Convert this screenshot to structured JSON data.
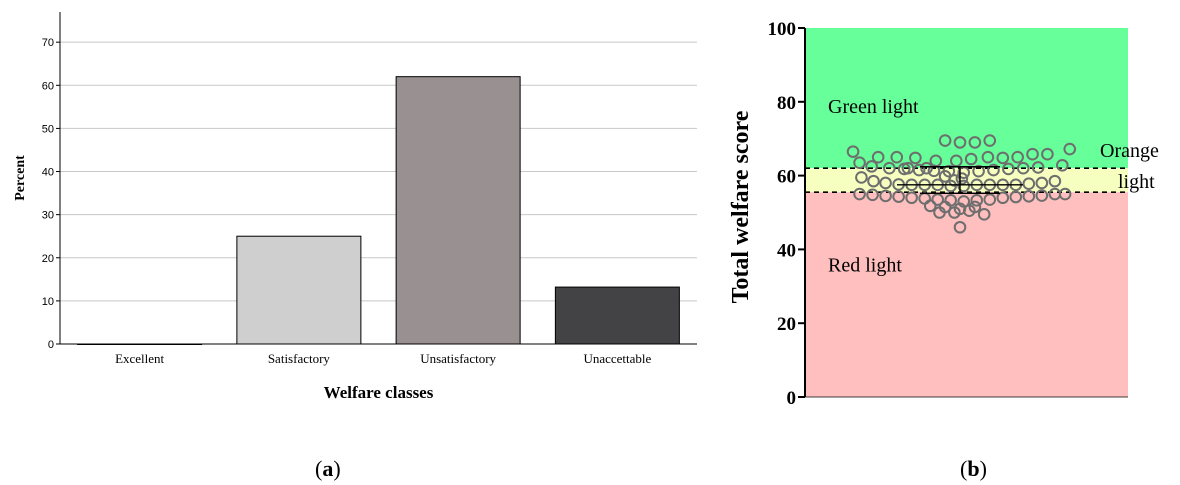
{
  "chart_data": [
    {
      "panel": "a",
      "type": "bar",
      "xlabel": "Welfare classes",
      "ylabel": "Percent",
      "ylim": [
        0,
        77
      ],
      "yticks": [
        0,
        10,
        20,
        30,
        40,
        50,
        60,
        70
      ],
      "grid": true,
      "categories": [
        "Excellent",
        "Satisfactory",
        "Unsatisfactory",
        "Unaccettable"
      ],
      "values": [
        0,
        25,
        62,
        13.2
      ],
      "colors": [
        "#ffffff",
        "#cfcfcf",
        "#999191",
        "#434345"
      ]
    },
    {
      "panel": "b",
      "type": "scatter",
      "ylabel": "Total welfare score",
      "ylim": [
        0,
        100
      ],
      "yticks": [
        0,
        20,
        40,
        60,
        80,
        100
      ],
      "zones": [
        {
          "label": "Green light",
          "from": 62,
          "to": 100,
          "color": "#66ff99"
        },
        {
          "label": "Orange light",
          "from": 55.5,
          "to": 62,
          "color": "#f6ffc0"
        },
        {
          "label": "Red light",
          "from": 0,
          "to": 55.5,
          "color": "#ffbfbf"
        }
      ],
      "thresholds": [
        62,
        55.5
      ],
      "mean": 57.5,
      "sd_range": [
        55.2,
        62.4
      ],
      "points": [
        {
          "x": -11.5,
          "y": 66.5
        },
        {
          "x": -10.8,
          "y": 63.5
        },
        {
          "x": -9.5,
          "y": 62.5
        },
        {
          "x": -8.8,
          "y": 65
        },
        {
          "x": -7.6,
          "y": 62
        },
        {
          "x": -6.8,
          "y": 65
        },
        {
          "x": -5.6,
          "y": 62
        },
        {
          "x": -4.8,
          "y": 64.8
        },
        {
          "x": -3.6,
          "y": 62
        },
        {
          "x": -2.6,
          "y": 64
        },
        {
          "x": -1.6,
          "y": 69.5
        },
        {
          "x": 0,
          "y": 69
        },
        {
          "x": 1.6,
          "y": 69
        },
        {
          "x": 3.2,
          "y": 69.5
        },
        {
          "x": -0.4,
          "y": 64
        },
        {
          "x": 1.2,
          "y": 64.5
        },
        {
          "x": 3.0,
          "y": 65
        },
        {
          "x": 4.6,
          "y": 64.8
        },
        {
          "x": 6.2,
          "y": 65
        },
        {
          "x": 7.8,
          "y": 65.8
        },
        {
          "x": 9.4,
          "y": 65.8
        },
        {
          "x": 11.0,
          "y": 62.8
        },
        {
          "x": 11.8,
          "y": 67.2
        },
        {
          "x": -10.6,
          "y": 59.5
        },
        {
          "x": -9.3,
          "y": 58.5
        },
        {
          "x": -8.0,
          "y": 58
        },
        {
          "x": -6.6,
          "y": 57.6
        },
        {
          "x": -5.2,
          "y": 57.5
        },
        {
          "x": -3.8,
          "y": 57.5
        },
        {
          "x": -2.4,
          "y": 57.5
        },
        {
          "x": -1.0,
          "y": 57.2
        },
        {
          "x": 0.4,
          "y": 57.2
        },
        {
          "x": 1.8,
          "y": 57.5
        },
        {
          "x": 3.2,
          "y": 57.5
        },
        {
          "x": 4.6,
          "y": 57.5
        },
        {
          "x": 6.0,
          "y": 57.5
        },
        {
          "x": 7.4,
          "y": 57.8
        },
        {
          "x": 8.8,
          "y": 58
        },
        {
          "x": 10.2,
          "y": 58.5
        },
        {
          "x": -6.0,
          "y": 61.8
        },
        {
          "x": -4.4,
          "y": 61.5
        },
        {
          "x": -2.8,
          "y": 61.3
        },
        {
          "x": -1.2,
          "y": 61.2
        },
        {
          "x": 0.4,
          "y": 60.8
        },
        {
          "x": 2.0,
          "y": 61.2
        },
        {
          "x": 3.6,
          "y": 61.5
        },
        {
          "x": 5.2,
          "y": 61.8
        },
        {
          "x": 6.8,
          "y": 62
        },
        {
          "x": 8.4,
          "y": 62.2
        },
        {
          "x": -1.6,
          "y": 59.8
        },
        {
          "x": 0.2,
          "y": 59.2
        },
        {
          "x": -0.6,
          "y": 58.7
        },
        {
          "x": -10.8,
          "y": 55
        },
        {
          "x": -9.4,
          "y": 54.8
        },
        {
          "x": -8.0,
          "y": 54.5
        },
        {
          "x": -6.6,
          "y": 54.3
        },
        {
          "x": -5.2,
          "y": 54
        },
        {
          "x": -3.8,
          "y": 53.8
        },
        {
          "x": -2.4,
          "y": 53.5
        },
        {
          "x": -1.0,
          "y": 53.3
        },
        {
          "x": 0.4,
          "y": 53
        },
        {
          "x": 1.8,
          "y": 53.3
        },
        {
          "x": 3.2,
          "y": 53.5
        },
        {
          "x": 4.6,
          "y": 54
        },
        {
          "x": 6.0,
          "y": 54.2
        },
        {
          "x": 7.4,
          "y": 54.4
        },
        {
          "x": 8.8,
          "y": 54.6
        },
        {
          "x": 10.2,
          "y": 55
        },
        {
          "x": 11.3,
          "y": 55
        },
        {
          "x": -3.2,
          "y": 51.8
        },
        {
          "x": -1.6,
          "y": 51.5
        },
        {
          "x": 0.0,
          "y": 51
        },
        {
          "x": 1.6,
          "y": 51.5
        },
        {
          "x": -2.2,
          "y": 50
        },
        {
          "x": -0.6,
          "y": 50
        },
        {
          "x": 1.0,
          "y": 50.5
        },
        {
          "x": 2.6,
          "y": 49.5
        },
        {
          "x": 0.0,
          "y": 46
        }
      ]
    }
  ],
  "captions": {
    "a": "(a)",
    "b": "(b)"
  }
}
